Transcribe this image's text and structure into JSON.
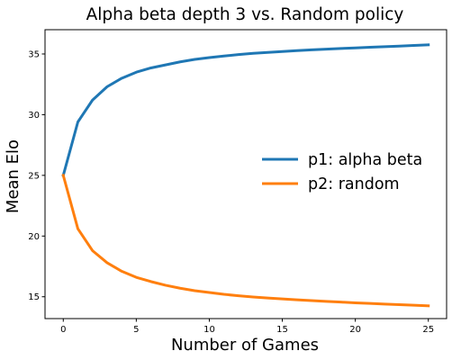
{
  "chart_data": {
    "type": "line",
    "title": "Alpha beta depth 3 vs. Random  policy",
    "xlabel": "Number of Games",
    "ylabel": "Mean Elo",
    "xlim": [
      -1.25,
      26.25
    ],
    "ylim": [
      13.2,
      37.0
    ],
    "x_ticks": [
      0,
      5,
      10,
      15,
      20,
      25
    ],
    "y_ticks": [
      15,
      20,
      25,
      30,
      35
    ],
    "grid": false,
    "legend_position": "right",
    "x": [
      0,
      1,
      2,
      3,
      4,
      5,
      6,
      7,
      8,
      9,
      10,
      11,
      12,
      13,
      14,
      15,
      16,
      17,
      18,
      19,
      20,
      21,
      22,
      23,
      24,
      25
    ],
    "series": [
      {
        "name": "p1: alpha beta",
        "color": "#1f77b4",
        "values": [
          25.0,
          29.4,
          31.2,
          32.3,
          33.0,
          33.5,
          33.85,
          34.1,
          34.35,
          34.55,
          34.7,
          34.83,
          34.95,
          35.05,
          35.13,
          35.2,
          35.28,
          35.34,
          35.4,
          35.45,
          35.5,
          35.55,
          35.6,
          35.65,
          35.7,
          35.75
        ]
      },
      {
        "name": "p2: random",
        "color": "#ff7f0e",
        "values": [
          25.0,
          20.6,
          18.8,
          17.8,
          17.1,
          16.6,
          16.25,
          15.95,
          15.7,
          15.5,
          15.35,
          15.2,
          15.08,
          14.98,
          14.9,
          14.82,
          14.75,
          14.68,
          14.62,
          14.56,
          14.5,
          14.45,
          14.4,
          14.35,
          14.3,
          14.25
        ]
      }
    ]
  }
}
